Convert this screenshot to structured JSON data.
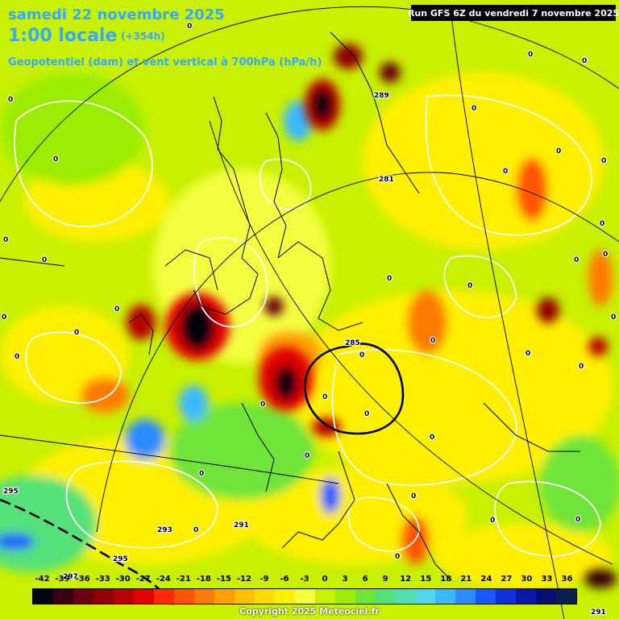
{
  "header": {
    "date_line": "samedi 22 novembre 2025",
    "time_line": "1:00 locale",
    "lead_time": "(+354h)",
    "field_title": "Geopotentiel (dam) et vent vertical à 700hPa (hPa/h)",
    "run_info": "Run GFS 6Z du vendredi 7 novembre 2025"
  },
  "legend": {
    "labels": [
      "-42",
      "-39",
      "-36",
      "-33",
      "-30",
      "-27",
      "-24",
      "-21",
      "-18",
      "-15",
      "-12",
      "-9",
      "-6",
      "-3",
      "0",
      "3",
      "6",
      "9",
      "12",
      "15",
      "18",
      "21",
      "24",
      "27",
      "30",
      "33",
      "36"
    ],
    "colors": [
      "#050510",
      "#3a0010",
      "#6a0010",
      "#8f0000",
      "#b80000",
      "#e00000",
      "#ff2a00",
      "#ff5500",
      "#ff7a00",
      "#ff9f00",
      "#ffc000",
      "#ffdc00",
      "#fff000",
      "#f4ff40",
      "#c8f000",
      "#9bec00",
      "#6fe43a",
      "#55e07a",
      "#50e0b0",
      "#50d8e8",
      "#3ab8ff",
      "#2a8cff",
      "#1a58ff",
      "#1030dc",
      "#0a18a8",
      "#0a0c78",
      "#0a1e50"
    ]
  },
  "map": {
    "isohypse_labels": [
      "289",
      "281",
      "285",
      "293",
      "291",
      "295",
      "297",
      "295",
      "291"
    ],
    "zero_labels": [
      "0",
      "0",
      "0",
      "0",
      "0",
      "0",
      "0",
      "0",
      "0",
      "0",
      "0",
      "0",
      "0",
      "0",
      "0",
      "0",
      "0",
      "0",
      "0",
      "0",
      "0",
      "0",
      "0",
      "0",
      "0",
      "0",
      "0",
      "0",
      "0",
      "0",
      "0",
      "0",
      "0",
      "0",
      "0",
      "0"
    ]
  },
  "footer": {
    "copyright": "Copyright 2025 Meteociel.fr"
  }
}
